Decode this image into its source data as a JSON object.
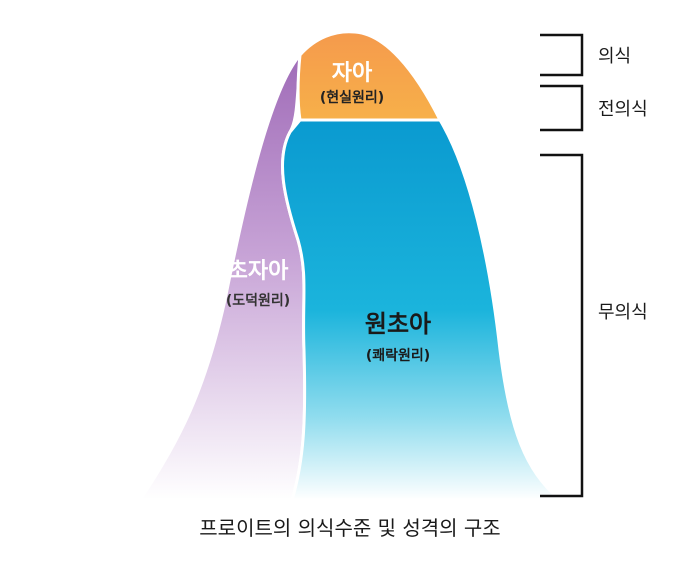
{
  "title": "프로이트의 의식수준 및 성격의 구조",
  "structures": {
    "ego": {
      "name": "자아",
      "principle": "(현실원리)",
      "color": "#F5A04A"
    },
    "superego": {
      "name": "초자아",
      "principle": "(도덕원리)",
      "color": "#A779BF"
    },
    "id": {
      "name": "원초아",
      "principle": "(쾌락원리)",
      "color": "#0FA3D4"
    }
  },
  "levels": {
    "conscious": "의식",
    "preconscious": "전의식",
    "unconscious": "무의식"
  }
}
